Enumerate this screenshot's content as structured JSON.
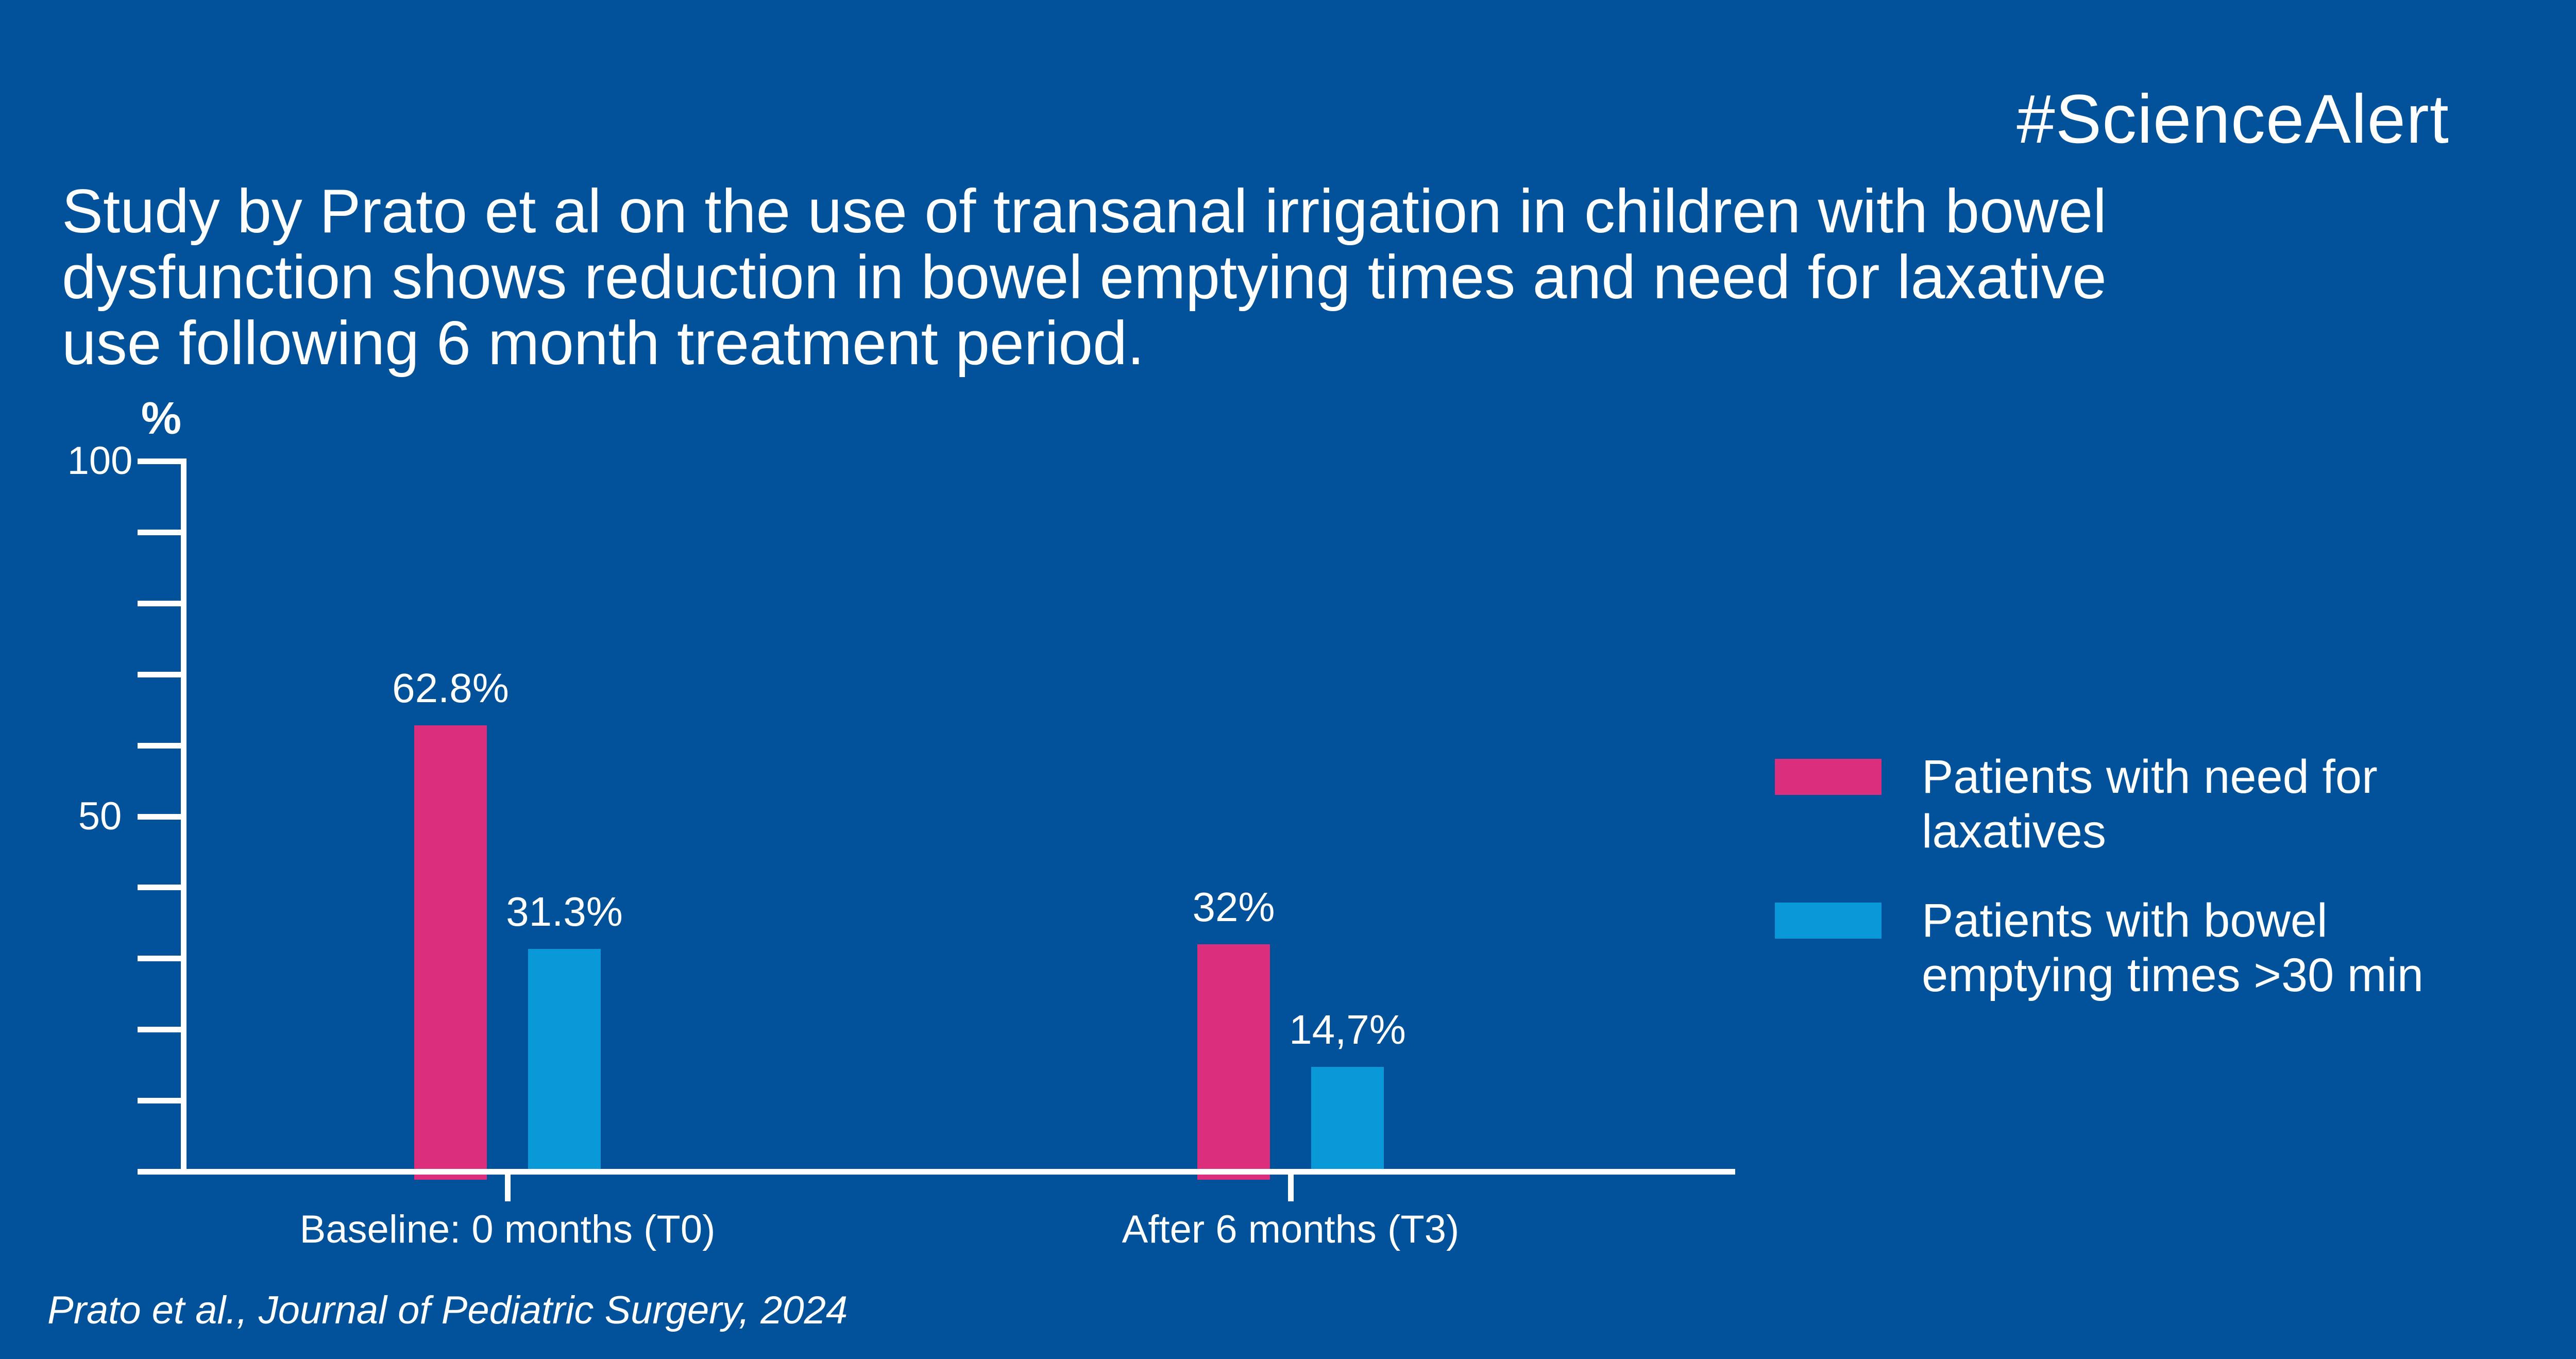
{
  "page": {
    "background_color": "#02529B",
    "text_color": "#FFFFFF",
    "hashtag": "#ScienceAlert",
    "title_lines": [
      "Study by Prato et al on the use of transanal irrigation in children with bowel",
      "dysfunction shows reduction in bowel emptying times and need for laxative",
      "use following 6 month treatment period."
    ],
    "citation": "Prato et al., Journal of Pediatric Surgery, 2024"
  },
  "chart_data": {
    "type": "bar",
    "title": "",
    "xlabel": "",
    "ylabel": "%",
    "unit_label": "%",
    "ylim": [
      0,
      100
    ],
    "ytick_step": 10,
    "ytick_text_labels": [
      {
        "value": 100,
        "label": "100"
      },
      {
        "value": 50,
        "label": "50"
      }
    ],
    "grid": false,
    "legend_position": "right",
    "categories": [
      "Baseline: 0 months (T0)",
      "After 6 months (T3)"
    ],
    "series": [
      {
        "name": "Patients with need for laxatives",
        "color": "#DB2E7C",
        "values": [
          62.8,
          32
        ],
        "value_labels": [
          "62.8%",
          "32%"
        ]
      },
      {
        "name": "Patients with bowel emptying times >30 min",
        "color": "#0999D8",
        "values": [
          31.3,
          14.7
        ],
        "value_labels": [
          "31.3%",
          "14,7%"
        ]
      }
    ],
    "legend": [
      {
        "color": "#DB2E7C",
        "lines": [
          "Patients with need for",
          "laxatives"
        ]
      },
      {
        "color": "#0999D8",
        "lines": [
          "Patients with bowel",
          "emptying times >30 min"
        ]
      }
    ]
  }
}
